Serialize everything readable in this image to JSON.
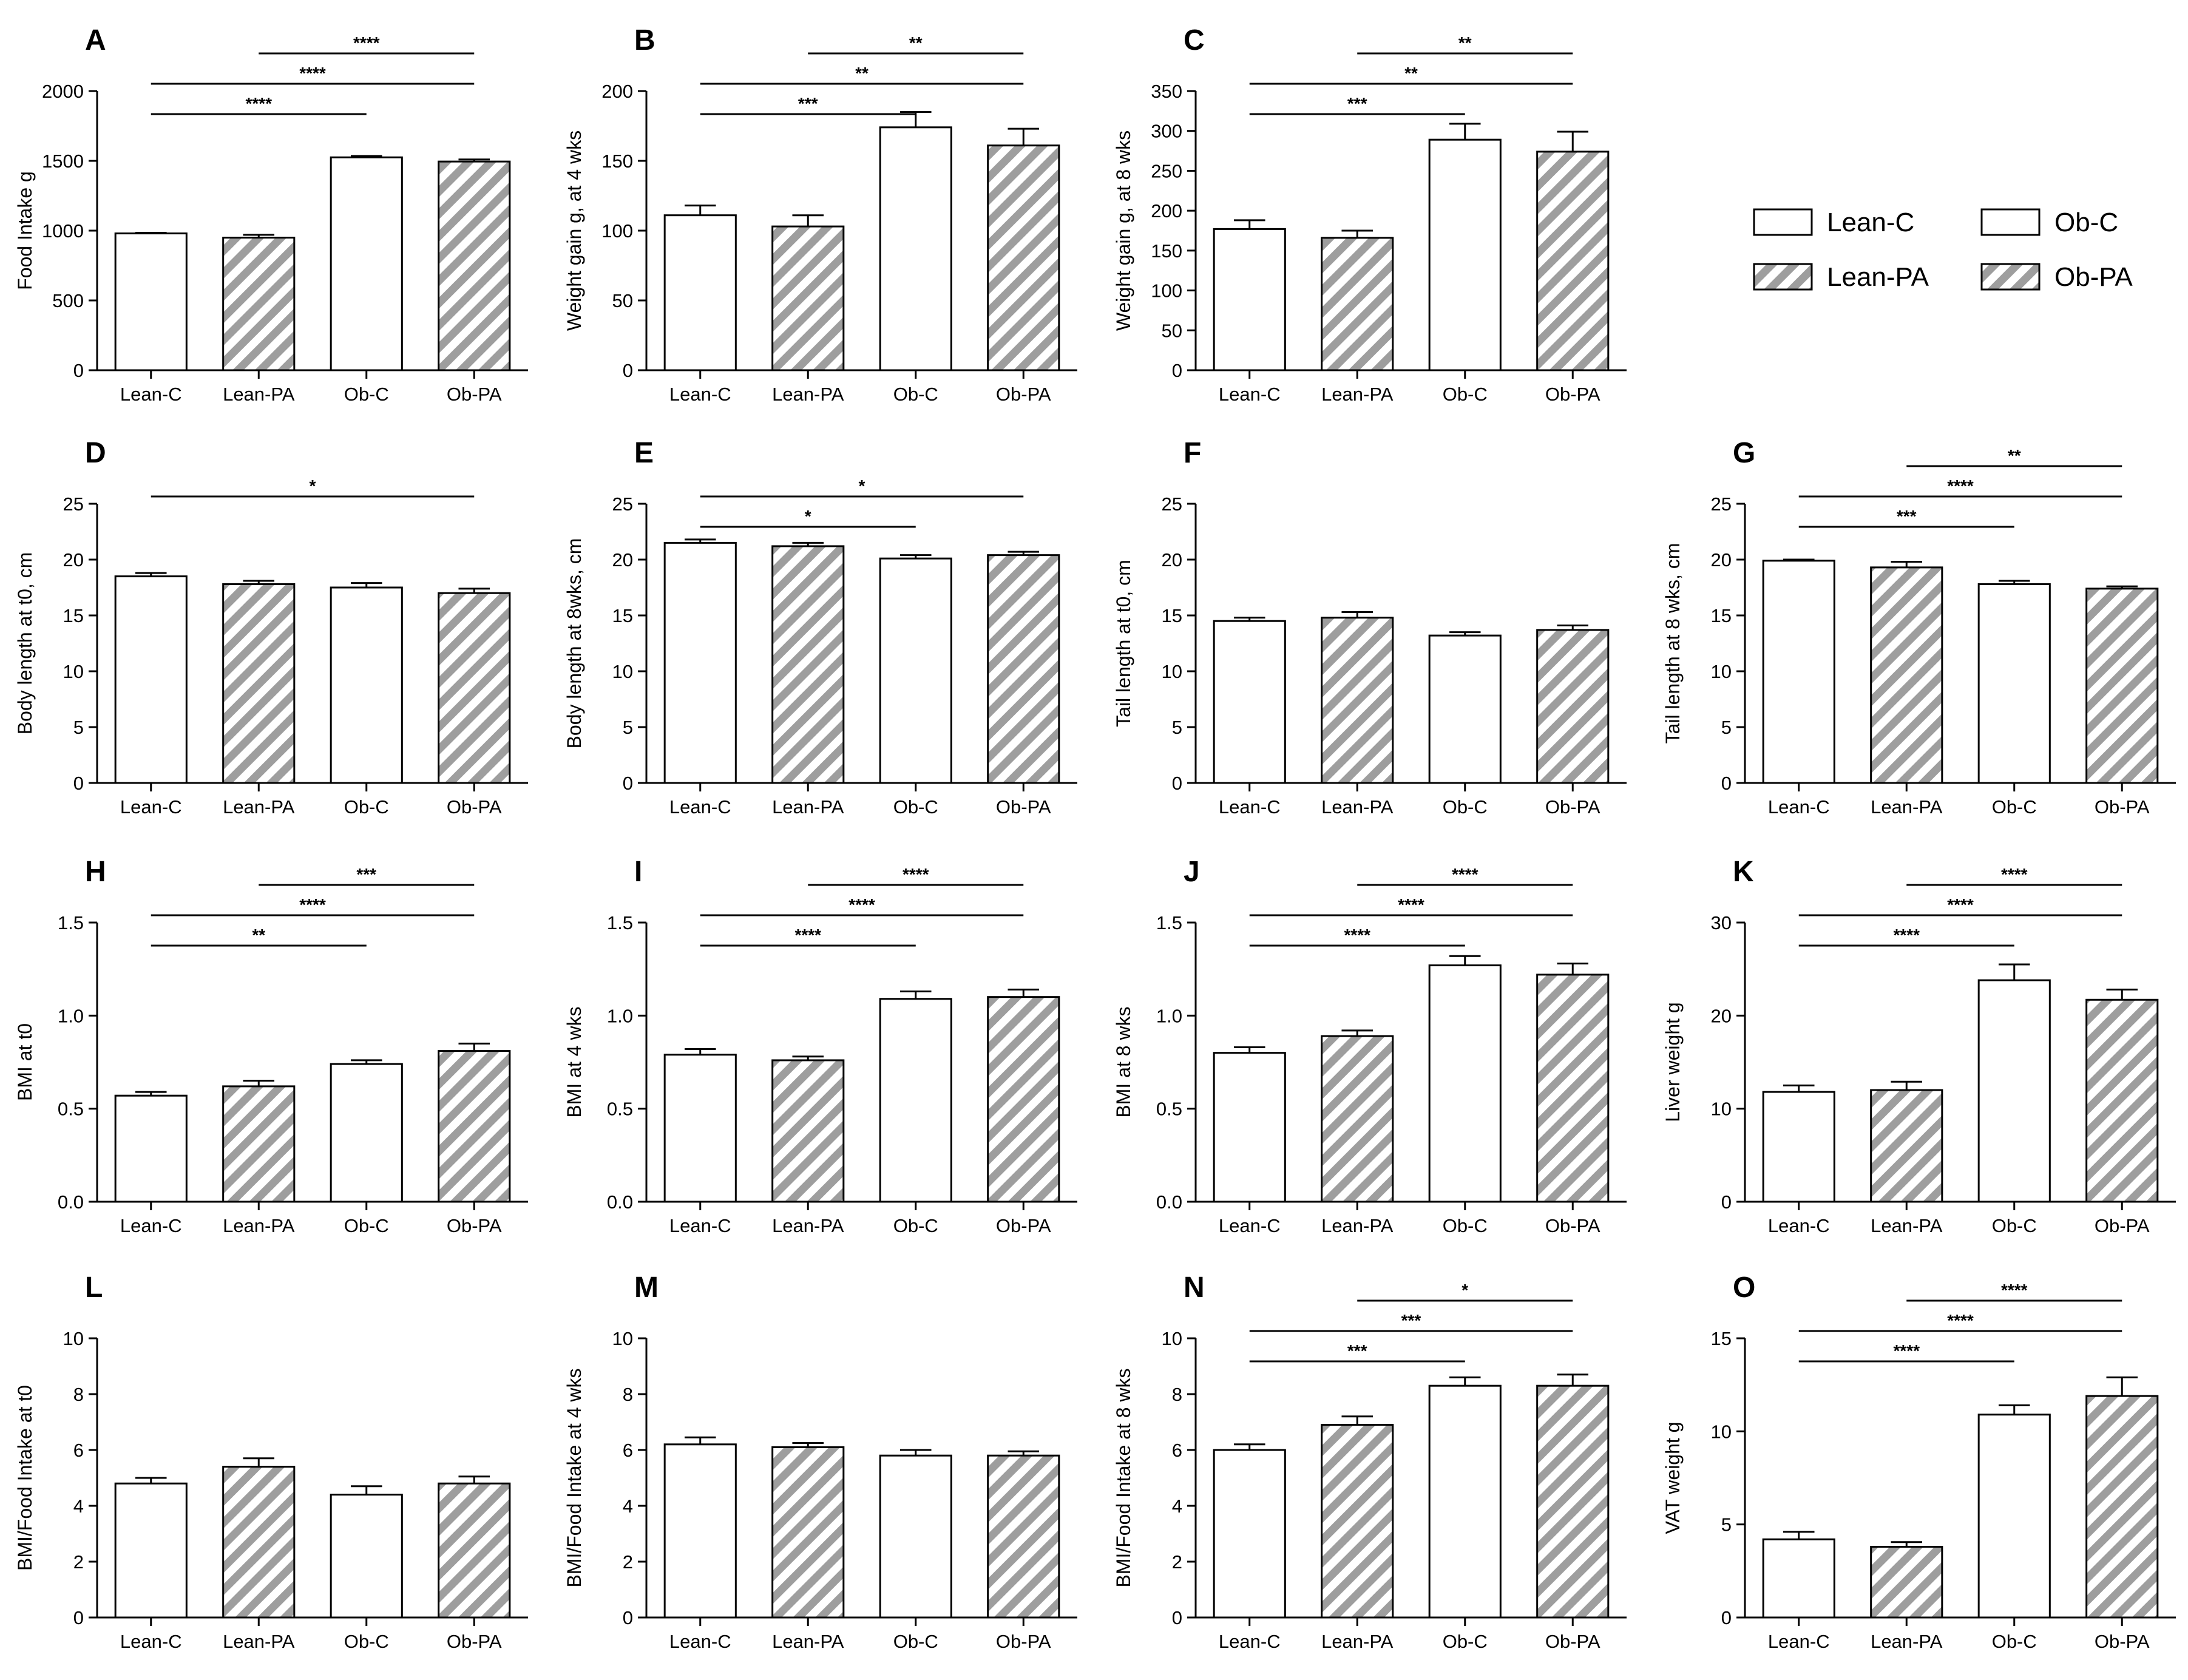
{
  "categories": [
    "Lean-C",
    "Lean-PA",
    "Ob-C",
    "Ob-PA"
  ],
  "colors": {
    "bar_stroke": "#000000",
    "hatch_fill": "#9e9e9e",
    "plain_fill": "#ffffff"
  },
  "legend": [
    {
      "label": "Lean-C",
      "hatched": false
    },
    {
      "label": "Ob-C",
      "hatched": false
    },
    {
      "label": "Lean-PA",
      "hatched": true
    },
    {
      "label": "Ob-PA",
      "hatched": true
    }
  ],
  "chart_data": [
    {
      "type": "bar",
      "letter": "A",
      "ylabel": "Food Intake g",
      "ylim": [
        0,
        2000
      ],
      "ticks": [
        0,
        500,
        1000,
        1500,
        2000
      ],
      "decimals": 0,
      "values": [
        980,
        950,
        1525,
        1495
      ],
      "errors": [
        5,
        20,
        10,
        15
      ],
      "sig": [
        {
          "from": 0,
          "to": 2,
          "label": "****",
          "level": 0
        },
        {
          "from": 0,
          "to": 3,
          "label": "****",
          "level": 1
        },
        {
          "from": 1,
          "to": 3,
          "label": "****",
          "level": 2
        }
      ]
    },
    {
      "type": "bar",
      "letter": "B",
      "ylabel": "Weight gain g, at 4 wks",
      "ylim": [
        0,
        200
      ],
      "ticks": [
        0,
        50,
        100,
        150,
        200
      ],
      "decimals": 0,
      "values": [
        111,
        103,
        174,
        161
      ],
      "errors": [
        7,
        8,
        11,
        12
      ],
      "sig": [
        {
          "from": 0,
          "to": 2,
          "label": "***",
          "level": 0
        },
        {
          "from": 0,
          "to": 3,
          "label": "**",
          "level": 1
        },
        {
          "from": 1,
          "to": 3,
          "label": "**",
          "level": 2
        }
      ]
    },
    {
      "type": "bar",
      "letter": "C",
      "ylabel": "Weight gain g, at 8 wks",
      "ylim": [
        0,
        350
      ],
      "ticks": [
        0,
        50,
        100,
        150,
        200,
        250,
        300,
        350
      ],
      "decimals": 0,
      "values": [
        177,
        166,
        289,
        274
      ],
      "errors": [
        11,
        9,
        20,
        25
      ],
      "sig": [
        {
          "from": 0,
          "to": 2,
          "label": "***",
          "level": 0
        },
        {
          "from": 0,
          "to": 3,
          "label": "**",
          "level": 1
        },
        {
          "from": 1,
          "to": 3,
          "label": "**",
          "level": 2
        }
      ]
    },
    {
      "type": "bar",
      "letter": "D",
      "ylabel": "Body length at t0, cm",
      "ylim": [
        0,
        25
      ],
      "ticks": [
        0,
        5,
        10,
        15,
        20,
        25
      ],
      "decimals": 0,
      "values": [
        18.5,
        17.8,
        17.5,
        17.0
      ],
      "errors": [
        0.3,
        0.3,
        0.4,
        0.4
      ],
      "sig": [
        {
          "from": 0,
          "to": 3,
          "label": "*",
          "level": 1
        }
      ]
    },
    {
      "type": "bar",
      "letter": "E",
      "ylabel": "Body length at 8wks, cm",
      "ylim": [
        0,
        25
      ],
      "ticks": [
        0,
        5,
        10,
        15,
        20,
        25
      ],
      "decimals": 0,
      "values": [
        21.5,
        21.2,
        20.1,
        20.4
      ],
      "errors": [
        0.3,
        0.3,
        0.3,
        0.3
      ],
      "sig": [
        {
          "from": 0,
          "to": 2,
          "label": "*",
          "level": 0
        },
        {
          "from": 0,
          "to": 3,
          "label": "*",
          "level": 1
        }
      ]
    },
    {
      "type": "bar",
      "letter": "F",
      "ylabel": "Tail length at t0, cm",
      "ylim": [
        0,
        25
      ],
      "ticks": [
        0,
        5,
        10,
        15,
        20,
        25
      ],
      "decimals": 0,
      "values": [
        14.5,
        14.8,
        13.2,
        13.7
      ],
      "errors": [
        0.3,
        0.5,
        0.3,
        0.4
      ],
      "sig": []
    },
    {
      "type": "bar",
      "letter": "G",
      "ylabel": "Tail length at 8 wks, cm",
      "ylim": [
        0,
        25
      ],
      "ticks": [
        0,
        5,
        10,
        15,
        20,
        25
      ],
      "decimals": 0,
      "values": [
        19.9,
        19.3,
        17.8,
        17.4
      ],
      "errors": [
        0.1,
        0.5,
        0.3,
        0.2
      ],
      "sig": [
        {
          "from": 0,
          "to": 2,
          "label": "***",
          "level": 0
        },
        {
          "from": 0,
          "to": 3,
          "label": "****",
          "level": 1
        },
        {
          "from": 1,
          "to": 3,
          "label": "**",
          "level": 2
        }
      ]
    },
    {
      "type": "bar",
      "letter": "H",
      "ylabel": "BMI at t0",
      "ylim": [
        0,
        1.5
      ],
      "ticks": [
        0,
        0.5,
        1.0,
        1.5
      ],
      "decimals": 1,
      "values": [
        0.57,
        0.62,
        0.74,
        0.81
      ],
      "errors": [
        0.02,
        0.03,
        0.02,
        0.04
      ],
      "sig": [
        {
          "from": 0,
          "to": 2,
          "label": "**",
          "level": 0
        },
        {
          "from": 0,
          "to": 3,
          "label": "****",
          "level": 1
        },
        {
          "from": 1,
          "to": 3,
          "label": "***",
          "level": 2
        }
      ]
    },
    {
      "type": "bar",
      "letter": "I",
      "ylabel": "BMI at 4 wks",
      "ylim": [
        0,
        1.5
      ],
      "ticks": [
        0,
        0.5,
        1.0,
        1.5
      ],
      "decimals": 1,
      "values": [
        0.79,
        0.76,
        1.09,
        1.1
      ],
      "errors": [
        0.03,
        0.02,
        0.04,
        0.04
      ],
      "sig": [
        {
          "from": 0,
          "to": 2,
          "label": "****",
          "level": 0
        },
        {
          "from": 0,
          "to": 3,
          "label": "****",
          "level": 1
        },
        {
          "from": 1,
          "to": 3,
          "label": "****",
          "level": 2
        }
      ]
    },
    {
      "type": "bar",
      "letter": "J",
      "ylabel": "BMI at 8 wks",
      "ylim": [
        0,
        1.5
      ],
      "ticks": [
        0,
        0.5,
        1.0,
        1.5
      ],
      "decimals": 1,
      "values": [
        0.8,
        0.89,
        1.27,
        1.22
      ],
      "errors": [
        0.03,
        0.03,
        0.05,
        0.06
      ],
      "sig": [
        {
          "from": 0,
          "to": 2,
          "label": "****",
          "level": 0
        },
        {
          "from": 0,
          "to": 3,
          "label": "****",
          "level": 1
        },
        {
          "from": 1,
          "to": 3,
          "label": "****",
          "level": 2
        }
      ]
    },
    {
      "type": "bar",
      "letter": "K",
      "ylabel": "Liver weight g",
      "ylim": [
        0,
        30
      ],
      "ticks": [
        0,
        10,
        20,
        30
      ],
      "decimals": 0,
      "values": [
        11.8,
        12.0,
        23.8,
        21.7
      ],
      "errors": [
        0.7,
        0.9,
        1.7,
        1.1
      ],
      "sig": [
        {
          "from": 0,
          "to": 2,
          "label": "****",
          "level": 0
        },
        {
          "from": 0,
          "to": 3,
          "label": "****",
          "level": 1
        },
        {
          "from": 1,
          "to": 3,
          "label": "****",
          "level": 2
        }
      ]
    },
    {
      "type": "bar",
      "letter": "L",
      "ylabel": "BMI/Food Intake at t0",
      "ylim": [
        0,
        10
      ],
      "ticks": [
        0,
        2,
        4,
        6,
        8,
        10
      ],
      "decimals": 0,
      "values": [
        4.8,
        5.4,
        4.4,
        4.8
      ],
      "errors": [
        0.2,
        0.3,
        0.3,
        0.25
      ],
      "sig": []
    },
    {
      "type": "bar",
      "letter": "M",
      "ylabel": "BMI/Food Intake at 4 wks",
      "ylim": [
        0,
        10
      ],
      "ticks": [
        0,
        2,
        4,
        6,
        8,
        10
      ],
      "decimals": 0,
      "values": [
        6.2,
        6.1,
        5.8,
        5.8
      ],
      "errors": [
        0.25,
        0.15,
        0.2,
        0.15
      ],
      "sig": []
    },
    {
      "type": "bar",
      "letter": "N",
      "ylabel": "BMI/Food Intake at 8 wks",
      "ylim": [
        0,
        10
      ],
      "ticks": [
        0,
        2,
        4,
        6,
        8,
        10
      ],
      "decimals": 0,
      "values": [
        6.0,
        6.9,
        8.3,
        8.3
      ],
      "errors": [
        0.2,
        0.3,
        0.3,
        0.4
      ],
      "sig": [
        {
          "from": 0,
          "to": 2,
          "label": "***",
          "level": 0
        },
        {
          "from": 0,
          "to": 3,
          "label": "***",
          "level": 1
        },
        {
          "from": 1,
          "to": 3,
          "label": "*",
          "level": 2
        }
      ]
    },
    {
      "type": "bar",
      "letter": "O",
      "ylabel": "VAT weight g",
      "ylim": [
        0,
        15
      ],
      "ticks": [
        0,
        5,
        10,
        15
      ],
      "decimals": 0,
      "values": [
        4.2,
        3.8,
        10.9,
        11.9
      ],
      "errors": [
        0.4,
        0.25,
        0.5,
        1.0
      ],
      "sig": [
        {
          "from": 0,
          "to": 2,
          "label": "****",
          "level": 0
        },
        {
          "from": 0,
          "to": 3,
          "label": "****",
          "level": 1
        },
        {
          "from": 1,
          "to": 3,
          "label": "****",
          "level": 2
        }
      ]
    }
  ]
}
